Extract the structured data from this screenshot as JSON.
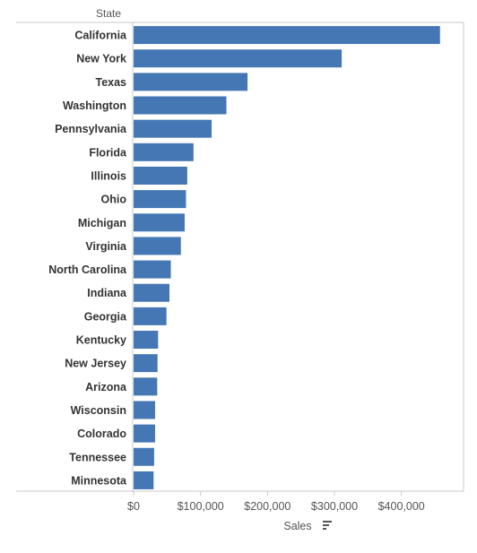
{
  "chart_data": {
    "type": "bar",
    "orientation": "horizontal",
    "row_header": "State",
    "categories": [
      "California",
      "New York",
      "Texas",
      "Washington",
      "Pennsylvania",
      "Florida",
      "Illinois",
      "Ohio",
      "Michigan",
      "Virginia",
      "North Carolina",
      "Indiana",
      "Georgia",
      "Kentucky",
      "New Jersey",
      "Arizona",
      "Wisconsin",
      "Colorado",
      "Tennessee",
      "Minnesota"
    ],
    "series": [
      {
        "values": [
          457688,
          310876,
          170188,
          138641,
          116512,
          89474,
          80166,
          78258,
          76270,
          70637,
          55603,
          53555,
          49096,
          36592,
          35764,
          35282,
          32115,
          32108,
          30662,
          29863
        ]
      }
    ],
    "xlabel": "Sales",
    "xlim": [
      0,
      480000
    ],
    "x_ticks": [
      0,
      100000,
      200000,
      300000,
      400000
    ],
    "x_tick_labels": [
      "$0",
      "$100,000",
      "$200,000",
      "$300,000",
      "$400,000"
    ],
    "grid": false,
    "bar_color": "#4477b3",
    "sort_icon": "sort-descending-icon"
  }
}
